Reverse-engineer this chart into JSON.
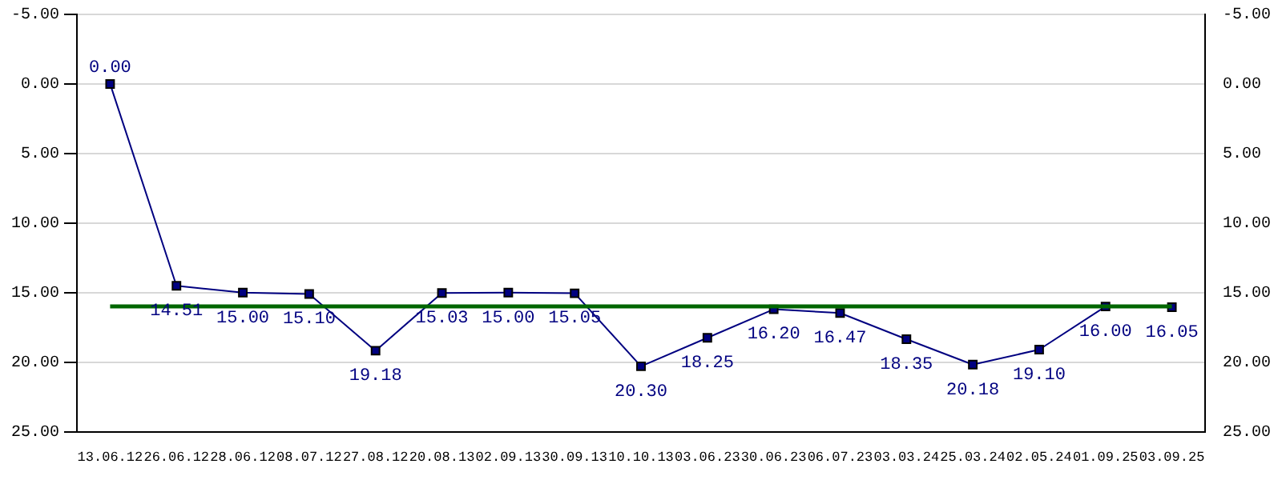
{
  "chart_data": {
    "type": "line",
    "categories": [
      "13.06.12",
      "26.06.12",
      "28.06.12",
      "08.07.12",
      "27.08.12",
      "20.08.13",
      "02.09.13",
      "30.09.13",
      "10.10.13",
      "03.06.23",
      "30.06.23",
      "06.07.23",
      "03.03.24",
      "25.03.24",
      "02.05.24",
      "01.09.25",
      "03.09.25"
    ],
    "series": [
      {
        "color": "#000080",
        "values": [
          0,
          14.51,
          15,
          15.1,
          19.18,
          15.03,
          15,
          15.05,
          20.3,
          18.25,
          16.2,
          16.47,
          18.35,
          20.18,
          19.1,
          16,
          16.05
        ],
        "value_labels": [
          "0.00",
          "14.51",
          "15.00",
          "15.10",
          "19.18",
          "15.03",
          "15.00",
          "15.05",
          "20.30",
          "18.25",
          "16.20",
          "16.47",
          "18.35",
          "20.18",
          "19.10",
          "16.00",
          "16.05"
        ]
      }
    ],
    "ylim": [
      25,
      -5
    ],
    "yticks": [
      {
        "value": -5,
        "label": "-5.00"
      },
      {
        "value": 0,
        "label": "0.00"
      },
      {
        "value": 5,
        "label": "5.00"
      },
      {
        "value": 10,
        "label": "10.00"
      },
      {
        "value": 15,
        "label": "15.00"
      },
      {
        "value": 20,
        "label": "20.00"
      },
      {
        "value": 25,
        "label": "25.00"
      }
    ],
    "y2lim": [
      25,
      -5
    ],
    "y2ticks": [
      {
        "value": -5,
        "label": "-5.00"
      },
      {
        "value": 0,
        "label": "0.00"
      },
      {
        "value": 5,
        "label": "5.00"
      },
      {
        "value": 10,
        "label": "10.00"
      },
      {
        "value": 15,
        "label": "15.00"
      },
      {
        "value": 20,
        "label": "20.00"
      },
      {
        "value": 25,
        "label": "25.00"
      }
    ],
    "ref_lines": [
      {
        "axis": "y",
        "value": 16,
        "color": "#006600"
      }
    ],
    "grid": "y",
    "marker": "square",
    "line_style": "solid",
    "legend": false
  }
}
